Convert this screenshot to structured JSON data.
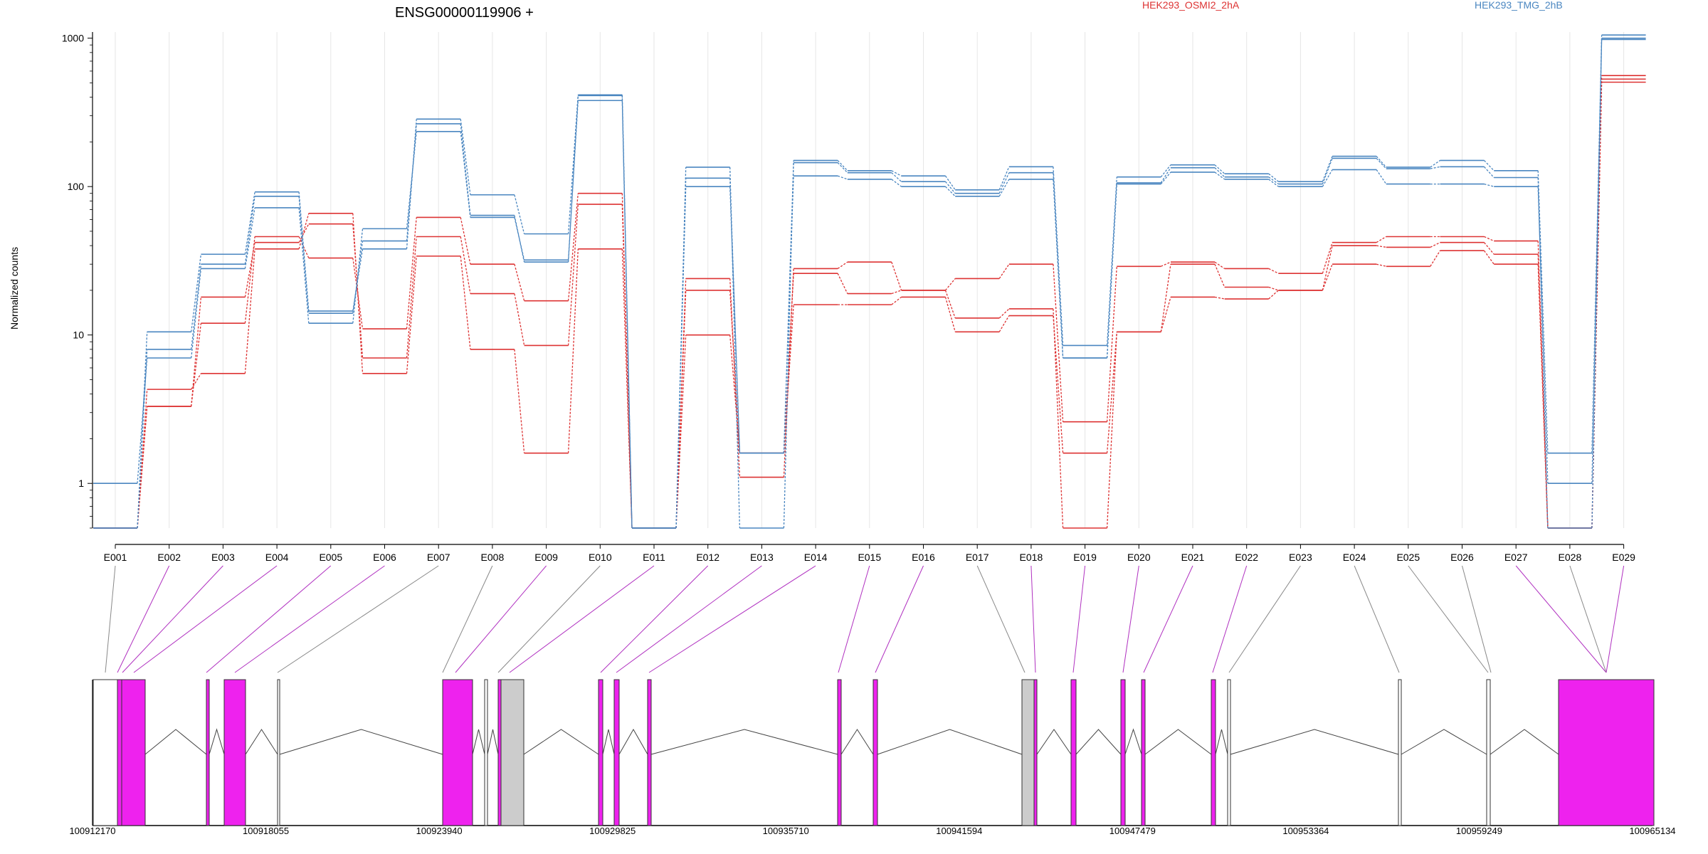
{
  "chart_data": {
    "type": "line",
    "title": "ENSG00000119906 +",
    "ylabel": "Normalized counts",
    "xlabel": "",
    "y_scale": "log",
    "ylim": [
      0.5,
      1100
    ],
    "grid": "vertical",
    "legend_position": "top",
    "yticks": [
      1,
      10,
      100,
      1000
    ],
    "ytick_labels": [
      "1",
      "10",
      "100",
      "1000"
    ],
    "categories": [
      "E001",
      "E002",
      "E003",
      "E004",
      "E005",
      "E006",
      "E007",
      "E008",
      "E009",
      "E010",
      "E011",
      "E012",
      "E013",
      "E014",
      "E015",
      "E016",
      "E017",
      "E018",
      "E019",
      "E020",
      "E021",
      "E022",
      "E023",
      "E024",
      "E025",
      "E026",
      "E027",
      "E028",
      "E029"
    ],
    "series": [
      {
        "name": "HEK293_OSMI2_2hA",
        "color": "#dd3333",
        "values": [
          0.5,
          3.3,
          12,
          46,
          33,
          11,
          62,
          30,
          17,
          90,
          0.5,
          24,
          1.1,
          28,
          31,
          20,
          24,
          30,
          2.6,
          29,
          31,
          28,
          26,
          42,
          46,
          46,
          43,
          0.5,
          560
        ]
      },
      {
        "name": "HEK293_OSMI2_2hA",
        "color": "#dd3333",
        "values": [
          0.5,
          3.3,
          18,
          42,
          56,
          7,
          46,
          19,
          8.5,
          76,
          0.5,
          20,
          1.6,
          26,
          19,
          20,
          13,
          15,
          0.5,
          10.5,
          30,
          21,
          20,
          40,
          39,
          42,
          35,
          0.5,
          530
        ]
      },
      {
        "name": "HEK293_OSMI2_2hA",
        "color": "#dd3333",
        "values": [
          0.5,
          4.3,
          5.5,
          38,
          66,
          5.5,
          34,
          8,
          1.6,
          38,
          0.5,
          10,
          1.6,
          16,
          16,
          18,
          10.5,
          13.5,
          1.6,
          10.5,
          18,
          17.5,
          20,
          30,
          29,
          37,
          30,
          0.5,
          505
        ]
      },
      {
        "name": "HEK293_TMG_2hB",
        "color": "#4a86c0",
        "values": [
          1.0,
          7,
          28,
          72,
          12,
          52,
          235,
          62,
          32,
          380,
          0.5,
          100,
          1.6,
          118,
          112,
          100,
          86,
          112,
          7,
          104,
          125,
          112,
          100,
          130,
          104,
          104,
          100,
          1.0,
          980
        ]
      },
      {
        "name": "HEK293_TMG_2hB",
        "color": "#4a86c0",
        "values": [
          0.5,
          8,
          30,
          86,
          14,
          43,
          265,
          64,
          31,
          410,
          0.5,
          114,
          1.6,
          145,
          124,
          108,
          90,
          124,
          7,
          106,
          134,
          116,
          104,
          155,
          132,
          136,
          115,
          0.5,
          1000
        ]
      },
      {
        "name": "HEK293_TMG_2hB",
        "color": "#4a86c0",
        "values": [
          0.5,
          10.5,
          35,
          92,
          14.5,
          38,
          285,
          88,
          48,
          415,
          0.5,
          135,
          0.5,
          150,
          128,
          118,
          95,
          136,
          8.5,
          116,
          140,
          122,
          108,
          160,
          135,
          150,
          128,
          1.6,
          1050
        ]
      }
    ],
    "legend": [
      "HEK293_OSMI2_2hA",
      "HEK293_TMG_2hB"
    ],
    "gene_model": {
      "x_tick_labels": [
        "100912170",
        "100918055",
        "100923940",
        "100929825",
        "100935710",
        "100941594",
        "100947479",
        "100953364",
        "100959249",
        "100965134"
      ],
      "exon_colors": {
        "tested": "#ee22ee",
        "other": "#cccccc"
      }
    }
  }
}
